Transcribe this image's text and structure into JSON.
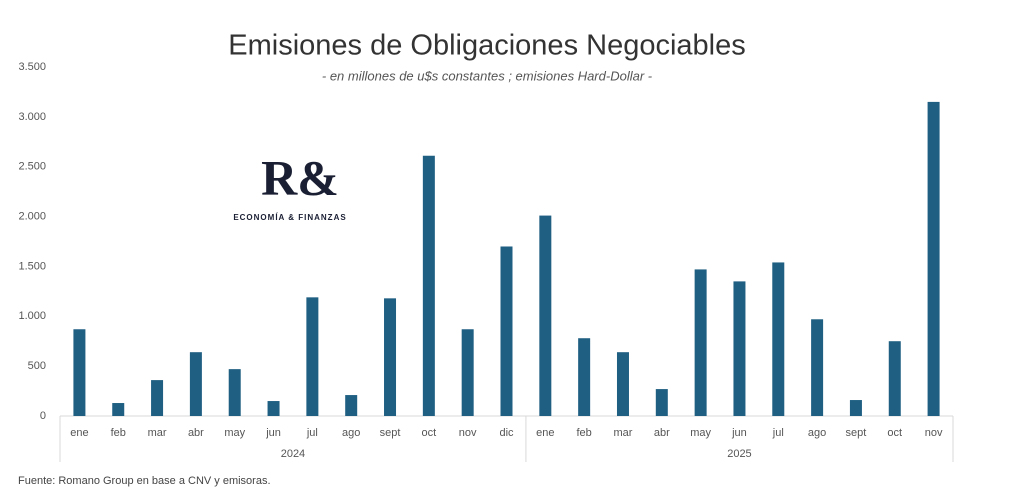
{
  "chart_data": {
    "type": "bar",
    "title": "Emisiones de Obligaciones Negociables",
    "subtitle": "- en millones de u$s constantes ; emisiones Hard-Dollar -",
    "categories": [
      "ene",
      "feb",
      "mar",
      "abr",
      "may",
      "jun",
      "jul",
      "ago",
      "sept",
      "oct",
      "nov",
      "dic",
      "ene",
      "feb",
      "mar",
      "abr",
      "may",
      "jun",
      "jul",
      "ago",
      "sept",
      "oct",
      "nov"
    ],
    "groups": [
      {
        "label": "2024",
        "size": 12
      },
      {
        "label": "2025",
        "size": 11
      }
    ],
    "values": [
      870,
      130,
      360,
      640,
      470,
      150,
      1190,
      210,
      1180,
      2610,
      870,
      1700,
      2010,
      780,
      640,
      270,
      1470,
      1350,
      1540,
      970,
      160,
      750,
      3150
    ],
    "color": "#1f5f82",
    "ylim": [
      0,
      3500
    ],
    "yticks": [
      0,
      500,
      {
        "value": 1000,
        "label": "1.000"
      },
      {
        "value": 1500,
        "label": "1.500"
      },
      {
        "value": 2000,
        "label": "2.000"
      },
      {
        "value": 2500,
        "label": "2.500"
      },
      {
        "value": 3000,
        "label": "3.000"
      },
      {
        "value": 3500,
        "label": "3.500"
      }
    ],
    "grid": false,
    "logo": {
      "mark": "R&",
      "text": "ECONOMÍA & FINANZAS"
    },
    "source": "Fuente: Romano Group en base a CNV y emisoras."
  }
}
